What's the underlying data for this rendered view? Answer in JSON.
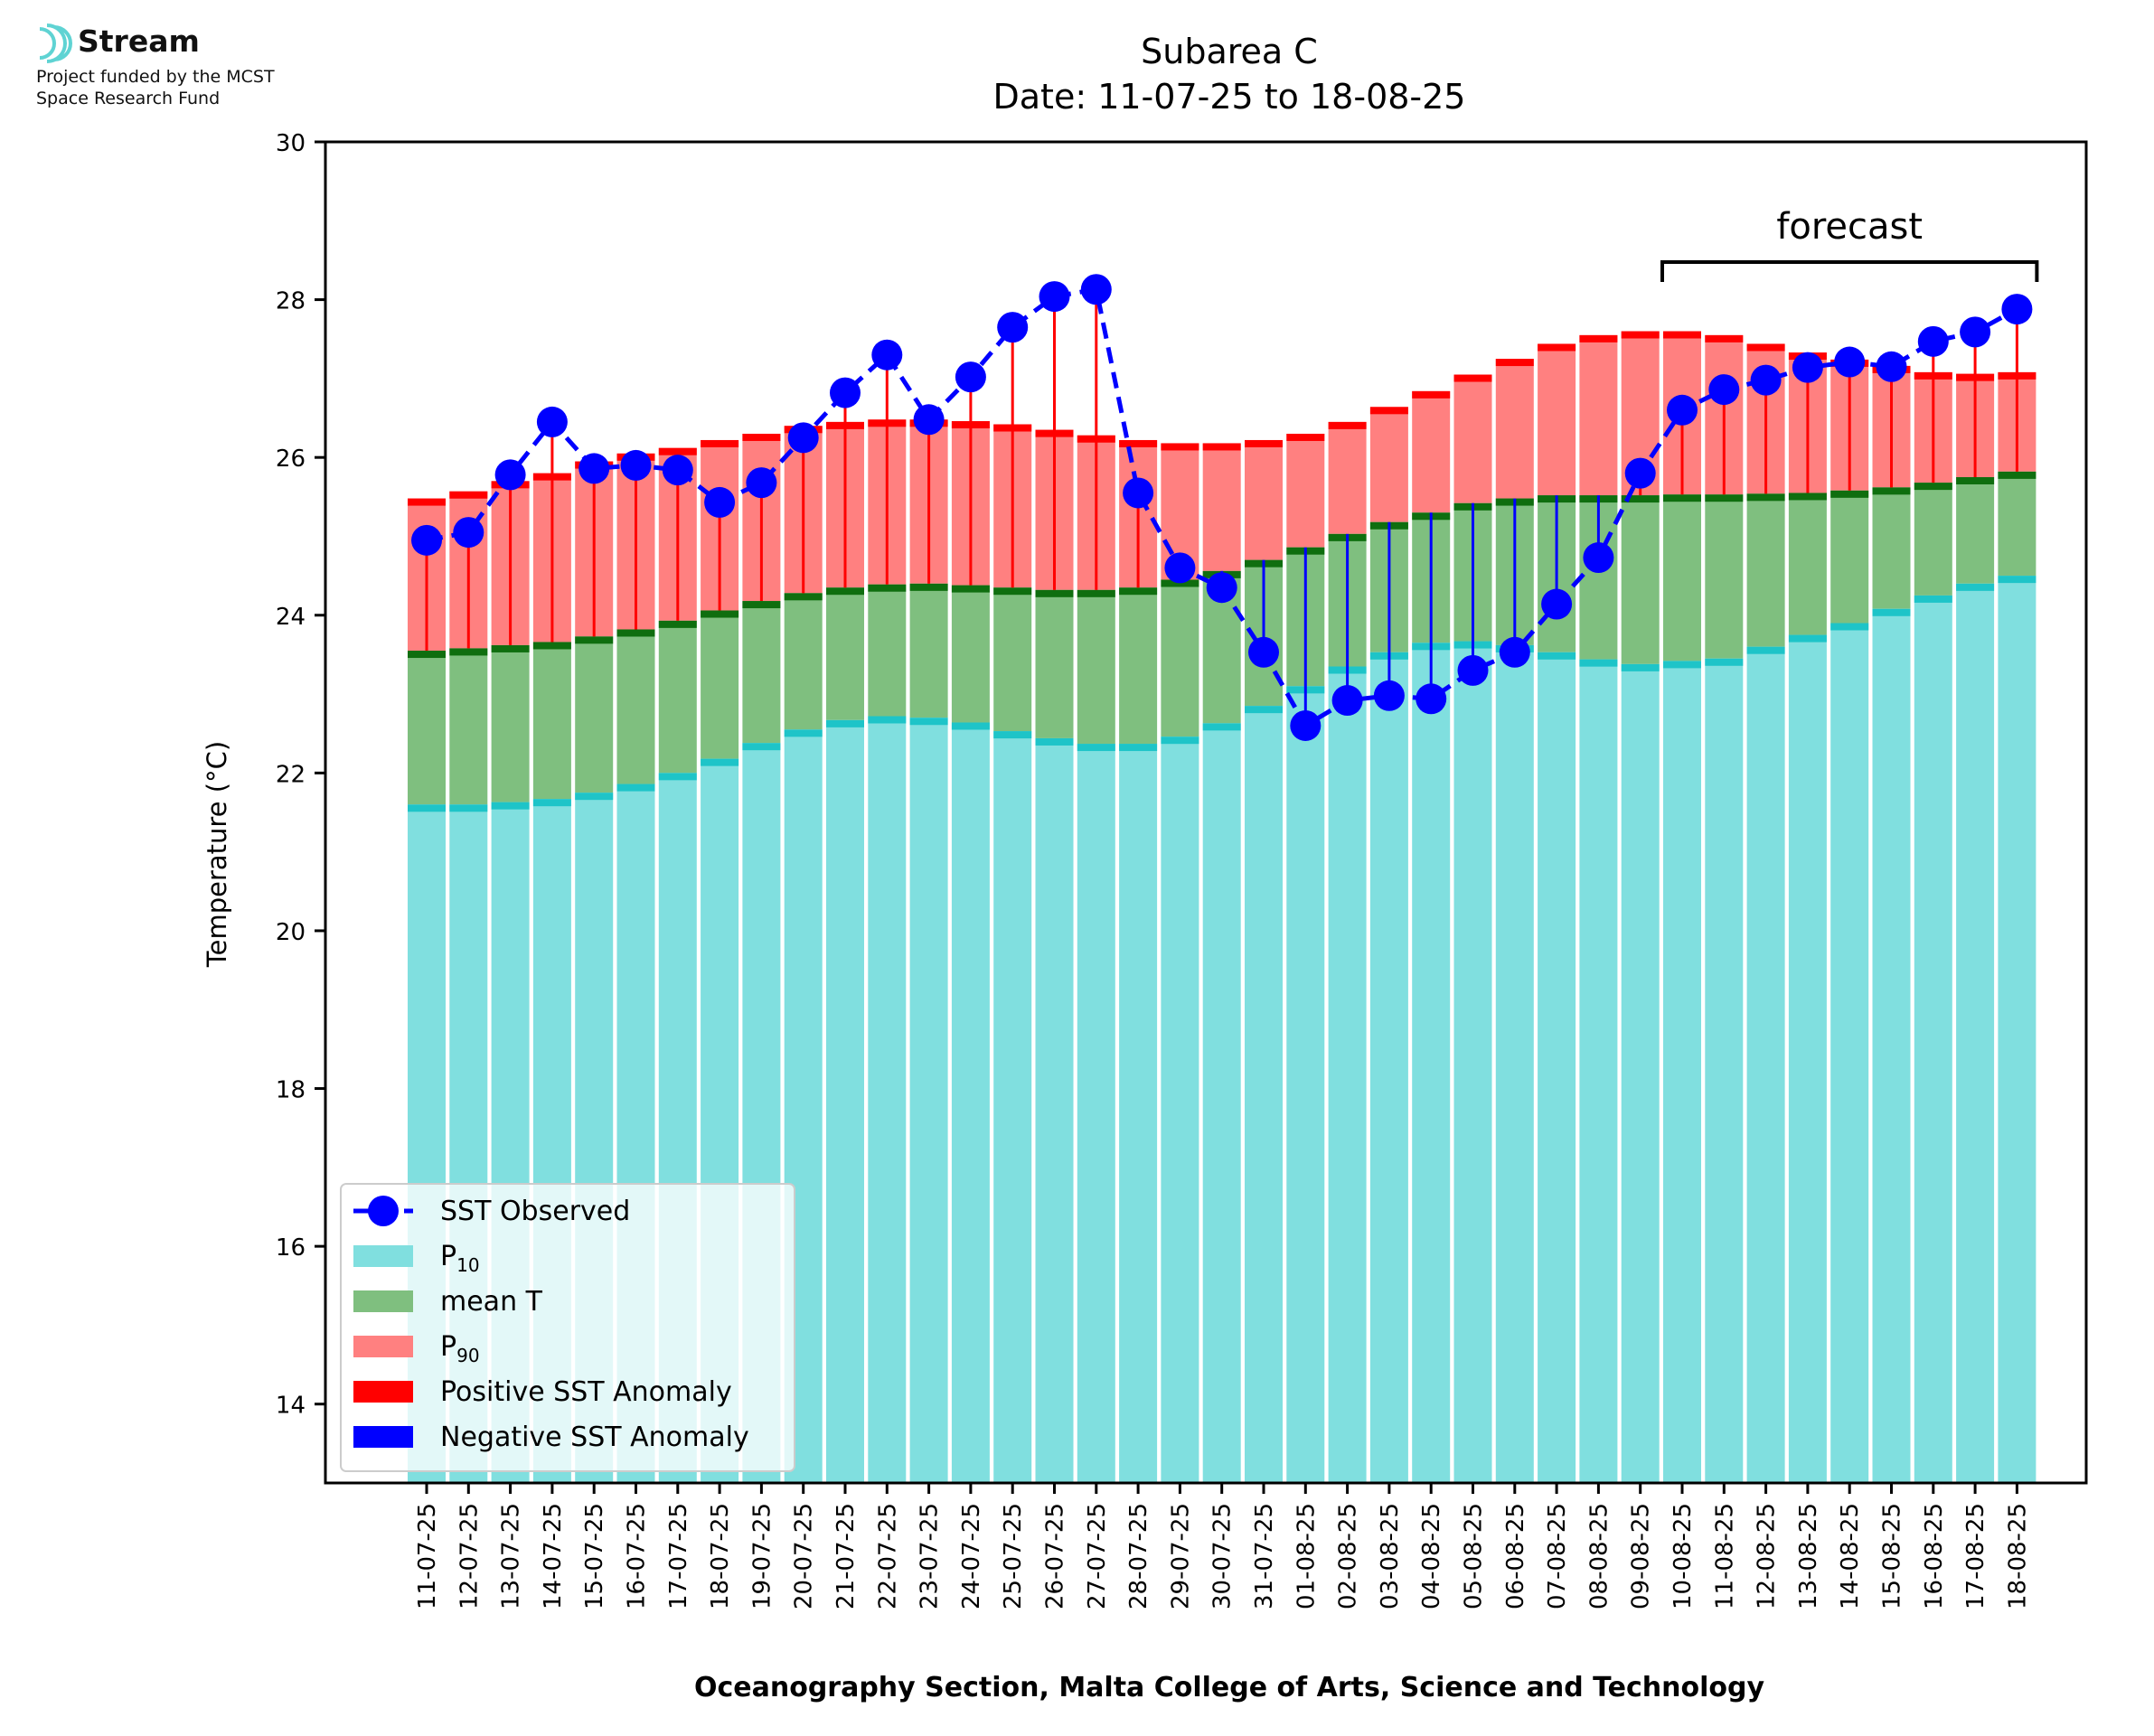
{
  "logo": {
    "name": "Stream",
    "line1": "Project funded by the MCST",
    "line2": "Space Research Fund",
    "accent": "#5fd3d3"
  },
  "chart_data": {
    "type": "bar",
    "title": "Subarea C",
    "subtitle": "Date: 11-07-25 to 18-08-25",
    "xlabel": "Oceanography Section, Malta College of Arts, Science and Technology",
    "ylabel": "Temperature (°C)",
    "ylim": [
      13,
      30
    ],
    "yticks": [
      14,
      16,
      18,
      20,
      22,
      24,
      26,
      28,
      30
    ],
    "grid": false,
    "legend_position": "lower-left",
    "annotation": {
      "text": "forecast",
      "from": "10-08-25",
      "to": "18-08-25"
    },
    "colors": {
      "p10": "#80dfdf",
      "p10_cap": "#1ec4c8",
      "mean": "#7fbf7f",
      "mean_cap": "#0f6e0f",
      "p90": "#ff8080",
      "p90_cap": "#ff0000",
      "sst": "#0000ff",
      "positive": "#ff0000",
      "negative": "#0000ff"
    },
    "legend": [
      {
        "key": "sst",
        "label": "SST Observed"
      },
      {
        "key": "p10",
        "label": "P",
        "sub": "10"
      },
      {
        "key": "mean",
        "label": "mean T"
      },
      {
        "key": "p90",
        "label": "P",
        "sub": "90"
      },
      {
        "key": "positive",
        "label": "Positive SST Anomaly"
      },
      {
        "key": "negative",
        "label": "Negative SST Anomaly"
      }
    ],
    "categories": [
      "11-07-25",
      "12-07-25",
      "13-07-25",
      "14-07-25",
      "15-07-25",
      "16-07-25",
      "17-07-25",
      "18-07-25",
      "19-07-25",
      "20-07-25",
      "21-07-25",
      "22-07-25",
      "23-07-25",
      "24-07-25",
      "25-07-25",
      "26-07-25",
      "27-07-25",
      "28-07-25",
      "29-07-25",
      "30-07-25",
      "31-07-25",
      "01-08-25",
      "02-08-25",
      "03-08-25",
      "04-08-25",
      "05-08-25",
      "06-08-25",
      "07-08-25",
      "08-08-25",
      "09-08-25",
      "10-08-25",
      "11-08-25",
      "12-08-25",
      "13-08-25",
      "14-08-25",
      "15-08-25",
      "16-08-25",
      "17-08-25",
      "18-08-25"
    ],
    "series": [
      {
        "name": "P",
        "sub": "10",
        "values": [
          21.6,
          21.6,
          21.63,
          21.67,
          21.75,
          21.86,
          22.0,
          22.18,
          22.38,
          22.55,
          22.67,
          22.72,
          22.7,
          22.64,
          22.53,
          22.44,
          22.37,
          22.37,
          22.46,
          22.63,
          22.85,
          23.1,
          23.35,
          23.53,
          23.65,
          23.67,
          23.62,
          23.53,
          23.44,
          23.38,
          23.42,
          23.45,
          23.6,
          23.75,
          23.9,
          24.08,
          24.25,
          24.4,
          24.5
        ]
      },
      {
        "name": "mean T",
        "values": [
          23.55,
          23.58,
          23.62,
          23.66,
          23.73,
          23.82,
          23.93,
          24.06,
          24.18,
          24.28,
          24.35,
          24.39,
          24.4,
          24.38,
          24.35,
          24.32,
          24.32,
          24.35,
          24.45,
          24.56,
          24.7,
          24.86,
          25.03,
          25.18,
          25.3,
          25.42,
          25.48,
          25.52,
          25.52,
          25.52,
          25.53,
          25.53,
          25.54,
          25.55,
          25.58,
          25.62,
          25.68,
          25.75,
          25.82
        ]
      },
      {
        "name": "P",
        "sub": "90",
        "values": [
          25.48,
          25.57,
          25.7,
          25.8,
          25.95,
          26.05,
          26.12,
          26.22,
          26.3,
          26.4,
          26.45,
          26.48,
          26.48,
          26.46,
          26.42,
          26.35,
          26.28,
          26.22,
          26.18,
          26.18,
          26.22,
          26.3,
          26.45,
          26.64,
          26.84,
          27.05,
          27.25,
          27.44,
          27.55,
          27.6,
          27.6,
          27.55,
          27.44,
          27.33,
          27.24,
          27.16,
          27.08,
          27.06,
          27.08
        ]
      },
      {
        "name": "SST Observed",
        "values": [
          24.95,
          25.05,
          25.78,
          26.45,
          25.86,
          25.9,
          25.84,
          25.43,
          25.68,
          26.25,
          26.82,
          27.3,
          26.48,
          27.02,
          27.65,
          28.04,
          28.13,
          25.55,
          24.6,
          24.35,
          23.53,
          22.6,
          22.92,
          22.98,
          22.94,
          23.3,
          23.53,
          24.14,
          24.73,
          25.8,
          26.6,
          26.86,
          26.98,
          27.14,
          27.21,
          27.15,
          27.47,
          27.59,
          27.88
        ]
      }
    ]
  }
}
